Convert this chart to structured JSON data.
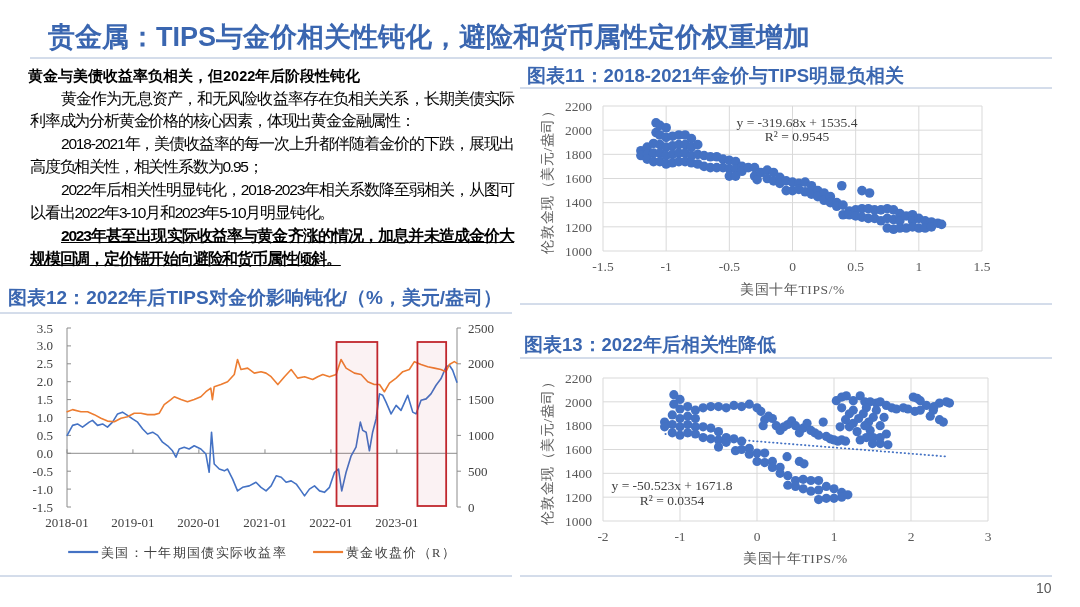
{
  "chart_data": [
    {
      "type": "other",
      "title": "贵金属：TIPS与金价相关性钝化，避险和货币属性定价权重增加",
      "subtitle": "黄金与美债收益率负相关，但2022年后阶段性钝化",
      "annotations": [
        "黄金作为无息资产，和无风险收益率存在负相关关系，长期美债实际利率成为分析黄金价格的核心因素，体现出黄金金融属性：",
        "2018-2021年，美债收益率的每一次上升都伴随着金价的下跌，展现出高度负相关性，相关性系数为0.95；",
        "2022年后相关性明显钝化，2018-2023年相关系数降至弱相关，从图可以看出2022年3-10月和2023年5-10月明显钝化。",
        "2023年甚至出现实际收益率与黄金齐涨的情况，加息并未造成金价大规模回调，定价锚开始向避险和货币属性倾斜。",
        "10"
      ]
    },
    {
      "type": "scatter",
      "title": "图表11：2018-2021年金价与TIPS明显负相关",
      "xlabel": "美国十年TIPS/%",
      "ylabel": "伦敦金现（美元/盎司）",
      "annotations": [
        "y = -319.68x + 1535.4",
        "R² = 0.9545"
      ],
      "color": "#4472c4",
      "marker": "circle",
      "grid": true,
      "xlim": [
        -1.5,
        1.5
      ],
      "xticks": [
        -1.5,
        -1,
        -0.5,
        0,
        0.5,
        1,
        1.5
      ],
      "ylim": [
        1000,
        2200
      ],
      "yticks": [
        1000,
        1200,
        1400,
        1600,
        1800,
        2000,
        2200
      ],
      "x": [
        -1.2,
        -1.2,
        -1.15,
        -1.15,
        -1.15,
        -1.1,
        -1.1,
        -1.1,
        -1.08,
        -1.08,
        -1.05,
        -1.05,
        -1.05,
        -1.05,
        -1.05,
        -1,
        -1,
        -1,
        -1,
        -1,
        -0.95,
        -0.95,
        -0.95,
        -0.95,
        -0.9,
        -0.9,
        -0.9,
        -0.9,
        -0.85,
        -0.85,
        -0.85,
        -0.85,
        -0.8,
        -0.8,
        -0.8,
        -0.8,
        -0.75,
        -0.75,
        -0.75,
        -0.7,
        -0.7,
        -0.65,
        -0.65,
        -0.6,
        -0.6,
        -0.55,
        -0.55,
        -0.5,
        -0.5,
        -0.5,
        -0.45,
        -0.45,
        -0.45,
        -0.4,
        -0.4,
        -0.35,
        -0.3,
        -0.3,
        -0.28,
        -0.25,
        -0.2,
        -0.2,
        -0.15,
        -0.15,
        -0.1,
        -0.1,
        -0.05,
        -0.05,
        0,
        0,
        0.05,
        0.05,
        0.1,
        0.1,
        0.15,
        0.15,
        0.2,
        0.2,
        0.25,
        0.25,
        0.3,
        0.3,
        0.35,
        0.35,
        0.39,
        0.4,
        0.4,
        0.45,
        0.45,
        0.5,
        0.5,
        0.55,
        0.55,
        0.55,
        0.6,
        0.6,
        0.61,
        0.65,
        0.65,
        0.7,
        0.7,
        0.75,
        0.75,
        0.75,
        0.8,
        0.8,
        0.8,
        0.85,
        0.85,
        0.85,
        0.9,
        0.9,
        0.95,
        0.95,
        0.95,
        1,
        1,
        1.05,
        1.05,
        1.1,
        1.1,
        1.15,
        1.18
      ],
      "values": [
        1830,
        1790,
        1860,
        1800,
        1760,
        1890,
        1810,
        1740,
        2060,
        1980,
        2040,
        1960,
        1880,
        1810,
        1740,
        2020,
        1940,
        1860,
        1790,
        1720,
        1950,
        1870,
        1800,
        1730,
        1960,
        1880,
        1810,
        1740,
        1960,
        1880,
        1810,
        1740,
        1930,
        1860,
        1790,
        1730,
        1880,
        1800,
        1720,
        1790,
        1700,
        1780,
        1690,
        1780,
        1690,
        1760,
        1690,
        1750,
        1680,
        1620,
        1740,
        1680,
        1620,
        1700,
        1660,
        1690,
        1690,
        1620,
        1590,
        1650,
        1670,
        1600,
        1650,
        1580,
        1610,
        1560,
        1580,
        1500,
        1570,
        1500,
        1560,
        1510,
        1570,
        1490,
        1540,
        1470,
        1500,
        1450,
        1480,
        1420,
        1450,
        1400,
        1400,
        1370,
        1540,
        1380,
        1300,
        1330,
        1300,
        1340,
        1290,
        1500,
        1350,
        1280,
        1350,
        1270,
        1480,
        1340,
        1270,
        1340,
        1250,
        1350,
        1270,
        1190,
        1340,
        1260,
        1180,
        1310,
        1250,
        1190,
        1290,
        1190,
        1300,
        1250,
        1200,
        1270,
        1190,
        1250,
        1190,
        1240,
        1200,
        1230,
        1220
      ]
    },
    {
      "type": "line",
      "title": "图表12：2022年后TIPS对金价影响钝化/（%，美元/盎司）",
      "legend": "bottom",
      "xlim": [
        "2018-01-01",
        "2023-11-30"
      ],
      "xticks": [
        "2018-01",
        "2019-01",
        "2020-01",
        "2021-01",
        "2022-01",
        "2023-01"
      ],
      "ylim": [
        -1.5,
        3.5
      ],
      "yticks": [
        -1.5,
        {
          "value": -1,
          "label": "-1.0"
        },
        -0.5,
        {
          "value": 0,
          "label": "0.0"
        },
        0.5,
        {
          "value": 1,
          "label": "1.0"
        },
        1.5,
        {
          "value": 2,
          "label": "2.0"
        },
        2.5,
        {
          "value": 3,
          "label": "3.0"
        },
        3.5
      ],
      "y2lim": [
        0,
        2500
      ],
      "y2ticks": [
        0,
        500,
        1000,
        1500,
        2000,
        2500
      ],
      "bands": [
        {
          "axis": "x",
          "from": "2022-02-01",
          "to": "2022-09-15",
          "color": "#c0272d"
        },
        {
          "axis": "x",
          "from": "2023-04-25",
          "to": "2023-10-01",
          "color": "#c0272d"
        }
      ],
      "series": [
        {
          "name": "美国：十年期国债实际收益率",
          "color": "#4472c4",
          "x": [
            "2018-01-02",
            "2018-02-01",
            "2018-02-28",
            "2018-03-28",
            "2018-05-04",
            "2018-05-22",
            "2018-06-19",
            "2018-07-17",
            "2018-08-13",
            "2018-09-10",
            "2018-10-08",
            "2018-11-04",
            "2018-12-02",
            "2018-12-30",
            "2019-01-27",
            "2019-02-24",
            "2019-03-23",
            "2019-04-20",
            "2019-05-18",
            "2019-06-14",
            "2019-07-12",
            "2019-08-08",
            "2019-08-27",
            "2019-09-14",
            "2019-10-12",
            "2019-11-08",
            "2019-12-06",
            "2020-01-12",
            "2020-02-09",
            "2020-02-27",
            "2020-03-11",
            "2020-03-26",
            "2020-04-23",
            "2020-05-21",
            "2020-06-08",
            "2020-07-06",
            "2020-08-02",
            "2020-08-30",
            "2020-10-06",
            "2020-11-12",
            "2020-12-10",
            "2021-01-07",
            "2021-02-04",
            "2021-03-04",
            "2021-04-01",
            "2021-04-28",
            "2021-05-26",
            "2021-06-23",
            "2021-07-20",
            "2021-08-08",
            "2021-09-04",
            "2021-10-02",
            "2021-10-30",
            "2021-11-26",
            "2021-12-24",
            "2022-01-21",
            "2022-02-12",
            "2022-03-02",
            "2022-03-26",
            "2022-04-23",
            "2022-05-20",
            "2022-06-13",
            "2022-06-26",
            "2022-07-15",
            "2022-08-02",
            "2022-08-20",
            "2022-09-08",
            "2022-09-27",
            "2022-10-15",
            "2022-11-02",
            "2022-11-30",
            "2022-12-28",
            "2023-01-24",
            "2023-03-02",
            "2023-03-30",
            "2023-04-17",
            "2023-05-15",
            "2023-06-12",
            "2023-07-09",
            "2023-08-06",
            "2023-09-02",
            "2023-09-30",
            "2023-10-19",
            "2023-11-06",
            "2023-11-29"
          ],
          "values": [
            0.5,
            0.78,
            0.82,
            0.73,
            0.87,
            0.92,
            0.78,
            0.82,
            0.73,
            0.87,
            1.1,
            1.15,
            1.06,
            0.96,
            0.87,
            0.68,
            0.54,
            0.59,
            0.5,
            0.31,
            0.21,
            0.07,
            -0.11,
            0.12,
            0.17,
            0.12,
            0.21,
            0.12,
            -0.02,
            -0.53,
            0.59,
            -0.3,
            -0.44,
            -0.49,
            -0.44,
            -0.72,
            -1.05,
            -0.95,
            -0.91,
            -0.81,
            -0.95,
            -1.05,
            -0.91,
            -0.63,
            -0.67,
            -0.81,
            -0.77,
            -0.86,
            -1.05,
            -1.19,
            -1,
            -0.91,
            -1.05,
            -1.09,
            -0.95,
            -0.53,
            -0.44,
            -1.05,
            -0.53,
            -0.07,
            0.17,
            0.87,
            0.64,
            0.59,
            0.07,
            0.59,
            0.96,
            1.66,
            1.62,
            1.43,
            1.1,
            1.34,
            1.2,
            1.62,
            1.15,
            1.1,
            1.48,
            1.52,
            1.66,
            1.9,
            2.08,
            2.41,
            2.46,
            2.32,
            1.99
          ]
        },
        {
          "name": "黄金收盘价（R）",
          "color": "#ed7d31",
          "axis": "y2",
          "x": [
            "2018-01-02",
            "2018-02-01",
            "2018-03-19",
            "2018-04-25",
            "2018-06-01",
            "2018-07-08",
            "2018-08-13",
            "2018-09-20",
            "2018-10-27",
            "2018-12-02",
            "2019-01-08",
            "2019-02-14",
            "2019-03-23",
            "2019-04-30",
            "2019-05-27",
            "2019-06-23",
            "2019-07-30",
            "2019-08-18",
            "2019-09-24",
            "2019-10-30",
            "2019-12-06",
            "2020-01-12",
            "2020-02-09",
            "2020-03-07",
            "2020-03-16",
            "2020-03-26",
            "2020-05-02",
            "2020-06-08",
            "2020-07-15",
            "2020-08-02",
            "2020-08-21",
            "2020-09-27",
            "2020-11-03",
            "2020-12-10",
            "2021-01-07",
            "2021-02-04",
            "2021-03-13",
            "2021-04-19",
            "2021-05-26",
            "2021-07-01",
            "2021-08-08",
            "2021-09-22",
            "2021-10-20",
            "2021-11-17",
            "2021-12-24",
            "2022-01-30",
            "2022-02-26",
            "2022-03-26",
            "2022-05-11",
            "2022-06-17",
            "2022-07-24",
            "2022-08-29",
            "2022-09-27",
            "2022-10-24",
            "2022-11-21",
            "2022-12-28",
            "2023-02-03",
            "2023-03-11",
            "2023-04-08",
            "2023-05-15",
            "2023-06-21",
            "2023-07-28",
            "2023-09-02",
            "2023-09-30",
            "2023-10-19",
            "2023-11-15",
            "2023-11-29"
          ],
          "values": [
            1330,
            1360,
            1330,
            1330,
            1290,
            1240,
            1200,
            1190,
            1240,
            1260,
            1310,
            1310,
            1290,
            1290,
            1310,
            1430,
            1500,
            1540,
            1500,
            1470,
            1500,
            1540,
            1610,
            1660,
            1500,
            1680,
            1710,
            1750,
            1850,
            2060,
            1920,
            1940,
            1870,
            1890,
            1870,
            1820,
            1710,
            1820,
            1920,
            1800,
            1820,
            1780,
            1820,
            1850,
            1820,
            1850,
            2060,
            1940,
            1870,
            1850,
            1750,
            1710,
            1710,
            1610,
            1730,
            1800,
            1890,
            1920,
            2030,
            1990,
            1960,
            1940,
            1920,
            1890,
            1990,
            2030,
            2010
          ]
        }
      ]
    },
    {
      "type": "scatter",
      "title": "图表13：2022年后相关性降低",
      "xlabel": "美国十年TIPS/%",
      "ylabel": "伦敦金现（美元/盎司）",
      "annotations": [
        "y = -50.523x + 1671.8",
        "R² = 0.0354"
      ],
      "grid": true,
      "xlim": [
        -2,
        3
      ],
      "xticks": [
        -2,
        -1,
        0,
        1,
        2,
        3
      ],
      "ylim": [
        1000,
        2200
      ],
      "yticks": [
        1000,
        1200,
        1400,
        1600,
        1800,
        2000,
        2200
      ],
      "series": [
        {
          "type": "scatter",
          "color": "#4472c4",
          "marker": "circle",
          "x": [
            -1.2,
            -1.2,
            -1.1,
            -1.1,
            -1.1,
            -1.08,
            -1.08,
            -1,
            -1,
            -1,
            -1,
            -1,
            -0.9,
            -0.9,
            -0.9,
            -0.9,
            -0.8,
            -0.8,
            -0.8,
            -0.8,
            -0.7,
            -0.7,
            -0.6,
            -0.6,
            -0.5,
            -0.5,
            -0.5,
            -0.4,
            -0.4,
            -0.3,
            -0.28,
            -0.2,
            -0.2,
            -0.1,
            -0.1,
            0,
            0,
            0.1,
            0.1,
            0.2,
            0.2,
            0.3,
            0.3,
            0.39,
            0.4,
            0.4,
            0.5,
            0.5,
            0.55,
            0.6,
            0.6,
            0.61,
            0.7,
            0.7,
            0.8,
            0.8,
            0.8,
            0.9,
            0.9,
            1,
            1,
            1.1,
            1.1,
            1.18,
            -0.7,
            -0.6,
            -0.5,
            -0.4,
            -0.3,
            -0.2,
            -0.1,
            0,
            0.05,
            0.1,
            0.08,
            0.15,
            0.2,
            0.25,
            0.3,
            0.35,
            0.4,
            0.45,
            0.5,
            0.55,
            0.6,
            0.65,
            0.7,
            0.75,
            0.8,
            0.86,
            0.9,
            0.95,
            1,
            1.05,
            1.1,
            1.15,
            1.03,
            1.1,
            1.16,
            1.25,
            1.34,
            1.4,
            1.47,
            1.55,
            1.6,
            1.68,
            1.25,
            1.42,
            1.38,
            1.51,
            1.08,
            1.2,
            1.25,
            1.32,
            1.45,
            1.6,
            1.47,
            1.68,
            1.34,
            1.42,
            1.51,
            1.6,
            1.7,
            1.6,
            1.1,
            1.2,
            1.15,
            1.3,
            1.4,
            1.55,
            1.65,
            1.5,
            1.75,
            1.81,
            1.9,
            1.96,
            2.03,
            2.08,
            2.12,
            2.2,
            2.29,
            2.37,
            2.46,
            2.5,
            2.12,
            2.25,
            2.37,
            2.42,
            2.05,
            2.3
          ],
          "values": [
            1830,
            1790,
            1890,
            1810,
            1740,
            2060,
            1980,
            2020,
            1940,
            1860,
            1790,
            1720,
            1960,
            1880,
            1810,
            1740,
            1930,
            1860,
            1790,
            1730,
            1790,
            1700,
            1780,
            1690,
            1750,
            1680,
            1620,
            1700,
            1660,
            1690,
            1590,
            1670,
            1600,
            1610,
            1560,
            1570,
            1500,
            1570,
            1490,
            1500,
            1450,
            1450,
            1400,
            1540,
            1380,
            1300,
            1340,
            1290,
            1500,
            1350,
            1270,
            1480,
            1340,
            1250,
            1340,
            1260,
            1180,
            1290,
            1190,
            1270,
            1190,
            1240,
            1200,
            1220,
            1950,
            1960,
            1960,
            1950,
            1970,
            1960,
            1980,
            1950,
            1920,
            1850,
            1800,
            1880,
            1860,
            1800,
            1760,
            1790,
            1810,
            1840,
            1800,
            1740,
            1780,
            1820,
            1760,
            1740,
            1720,
            1830,
            1710,
            1690,
            1680,
            1670,
            1680,
            1670,
            2010,
            2040,
            2050,
            2010,
            2050,
            2000,
            2000,
            1990,
            2000,
            1970,
            1930,
            1950,
            1900,
            1870,
            1790,
            1790,
            1820,
            1860,
            1830,
            1800,
            1760,
            1730,
            1680,
            1700,
            1700,
            1650,
            1640,
            1700,
            1950,
            1900,
            1850,
            1750,
            1800,
            1930,
            1870,
            1650,
            1950,
            1940,
            1950,
            1940,
            2040,
            2030,
            2010,
            1970,
            1930,
            1990,
            2000,
            1990,
            1930,
            1880,
            1850,
            1830,
            1920,
            1960
          ]
        },
        {
          "type": "line",
          "color": "#4472c4",
          "line_style": "dotted",
          "x": [
            -1.19,
            2.48
          ],
          "values": [
            1730,
            1540
          ]
        }
      ]
    }
  ]
}
